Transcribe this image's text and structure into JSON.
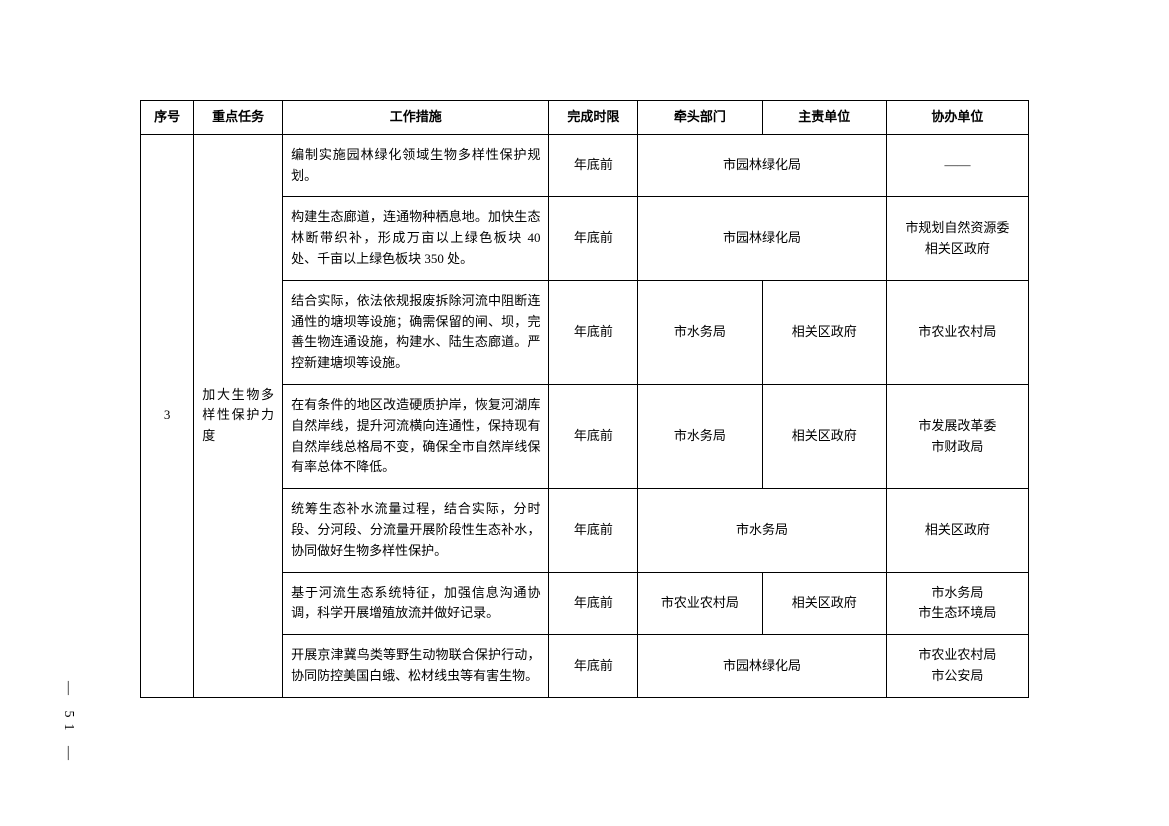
{
  "table": {
    "header": {
      "seq": "序号",
      "task": "重点任务",
      "measure": "工作措施",
      "deadline": "完成时限",
      "lead": "牵头部门",
      "responsible": "主责单位",
      "assist": "协办单位"
    },
    "colWidths": [
      "6%",
      "10%",
      "30%",
      "10%",
      "14%",
      "14%",
      "16%"
    ],
    "seq": "3",
    "task": "加大生物多样性保护力度",
    "rows": [
      {
        "measure": "编制实施园林绿化领域生物多样性保护规划。",
        "deadline": "年底前",
        "merge": true,
        "lead": "市园林绿化局",
        "assist": "——"
      },
      {
        "measure": "构建生态廊道，连通物种栖息地。加快生态林断带织补，形成万亩以上绿色板块 40 处、千亩以上绿色板块 350 处。",
        "deadline": "年底前",
        "merge": true,
        "lead": "市园林绿化局",
        "assist": "市规划自然资源委\n相关区政府"
      },
      {
        "measure": "结合实际，依法依规报废拆除河流中阻断连通性的塘坝等设施；确需保留的闸、坝，完善生物连通设施，构建水、陆生态廊道。严控新建塘坝等设施。",
        "deadline": "年底前",
        "merge": false,
        "lead": "市水务局",
        "responsible": "相关区政府",
        "assist": "市农业农村局"
      },
      {
        "measure": "在有条件的地区改造硬质护岸，恢复河湖库自然岸线，提升河流横向连通性，保持现有自然岸线总格局不变，确保全市自然岸线保有率总体不降低。",
        "deadline": "年底前",
        "merge": false,
        "lead": "市水务局",
        "responsible": "相关区政府",
        "assist": "市发展改革委\n市财政局"
      },
      {
        "measure": "统筹生态补水流量过程，结合实际，分时段、分河段、分流量开展阶段性生态补水，协同做好生物多样性保护。",
        "deadline": "年底前",
        "merge": true,
        "lead": "市水务局",
        "assist": "相关区政府"
      },
      {
        "measure": "基于河流生态系统特征，加强信息沟通协调，科学开展增殖放流并做好记录。",
        "deadline": "年底前",
        "merge": false,
        "lead": "市农业农村局",
        "responsible": "相关区政府",
        "assist": "市水务局\n市生态环境局"
      },
      {
        "measure": "开展京津冀鸟类等野生动物联合保护行动，协同防控美国白蛾、松材线虫等有害生物。",
        "deadline": "年底前",
        "merge": true,
        "lead": "市园林绿化局",
        "assist": "市农业农村局\n市公安局"
      }
    ]
  },
  "pageNumber": "— 51 —"
}
